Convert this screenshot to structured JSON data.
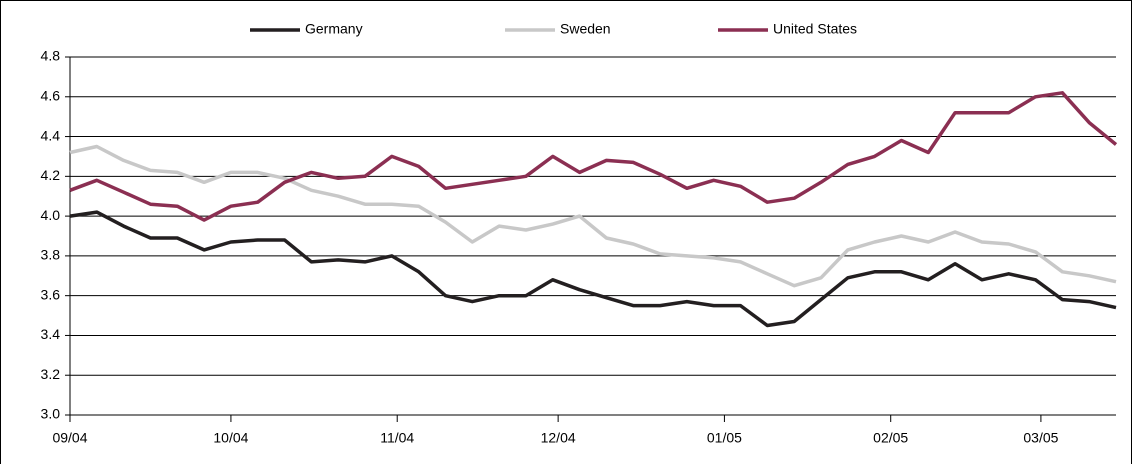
{
  "chart_data": {
    "type": "line",
    "x": [
      0,
      5,
      10,
      15,
      20,
      25,
      30,
      35,
      40,
      45,
      50,
      55,
      60,
      65,
      70,
      75,
      80,
      85,
      90,
      95,
      100,
      105,
      110,
      115,
      120,
      125,
      130,
      135,
      140,
      145,
      150,
      155,
      160,
      165,
      170,
      175,
      180,
      185,
      190,
      195
    ],
    "xlim": [
      0,
      195
    ],
    "xticks": [
      {
        "value": 0,
        "label": "09/04"
      },
      {
        "value": 30,
        "label": "10/04"
      },
      {
        "value": 61,
        "label": "11/04"
      },
      {
        "value": 91,
        "label": "12/04"
      },
      {
        "value": 122,
        "label": "01/05"
      },
      {
        "value": 153,
        "label": "02/05"
      },
      {
        "value": 181,
        "label": "03/05"
      }
    ],
    "ylim": [
      3.0,
      4.8
    ],
    "yticks": [
      {
        "value": 3.0,
        "label": "3.0"
      },
      {
        "value": 3.2,
        "label": "3.2"
      },
      {
        "value": 3.4,
        "label": "3.4"
      },
      {
        "value": 3.6,
        "label": "3.6"
      },
      {
        "value": 3.8,
        "label": "3.8"
      },
      {
        "value": 4.0,
        "label": "4.0"
      },
      {
        "value": 4.2,
        "label": "4.2"
      },
      {
        "value": 4.4,
        "label": "4.4"
      },
      {
        "value": 4.6,
        "label": "4.6"
      },
      {
        "value": 4.8,
        "label": "4.8"
      }
    ],
    "grid": true,
    "legend": "top",
    "series": [
      {
        "name": "Germany",
        "color": "#231f20",
        "values": [
          4.0,
          4.02,
          3.95,
          3.89,
          3.89,
          3.83,
          3.87,
          3.88,
          3.88,
          3.77,
          3.78,
          3.77,
          3.8,
          3.72,
          3.6,
          3.57,
          3.6,
          3.6,
          3.68,
          3.63,
          3.59,
          3.55,
          3.55,
          3.57,
          3.55,
          3.55,
          3.45,
          3.47,
          3.58,
          3.69,
          3.72,
          3.72,
          3.68,
          3.76,
          3.68,
          3.71,
          3.68,
          3.58,
          3.57,
          3.54
        ]
      },
      {
        "name": "Sweden",
        "color": "#c8c8c8",
        "values": [
          4.32,
          4.35,
          4.28,
          4.23,
          4.22,
          4.17,
          4.22,
          4.22,
          4.19,
          4.13,
          4.1,
          4.06,
          4.06,
          4.05,
          3.97,
          3.87,
          3.95,
          3.93,
          3.96,
          4.0,
          3.89,
          3.86,
          3.81,
          3.8,
          3.79,
          3.77,
          3.71,
          3.65,
          3.69,
          3.83,
          3.87,
          3.9,
          3.87,
          3.92,
          3.87,
          3.86,
          3.82,
          3.72,
          3.7,
          3.67
        ]
      },
      {
        "name": "United States",
        "color": "#8b2f52",
        "values": [
          4.13,
          4.18,
          4.12,
          4.06,
          4.05,
          3.98,
          4.05,
          4.07,
          4.17,
          4.22,
          4.19,
          4.2,
          4.3,
          4.25,
          4.14,
          4.16,
          4.18,
          4.2,
          4.3,
          4.22,
          4.28,
          4.27,
          4.21,
          4.14,
          4.18,
          4.15,
          4.07,
          4.09,
          4.17,
          4.26,
          4.3,
          4.38,
          4.32,
          4.52,
          4.52,
          4.52,
          4.6,
          4.62,
          4.47,
          4.36
        ]
      }
    ]
  }
}
